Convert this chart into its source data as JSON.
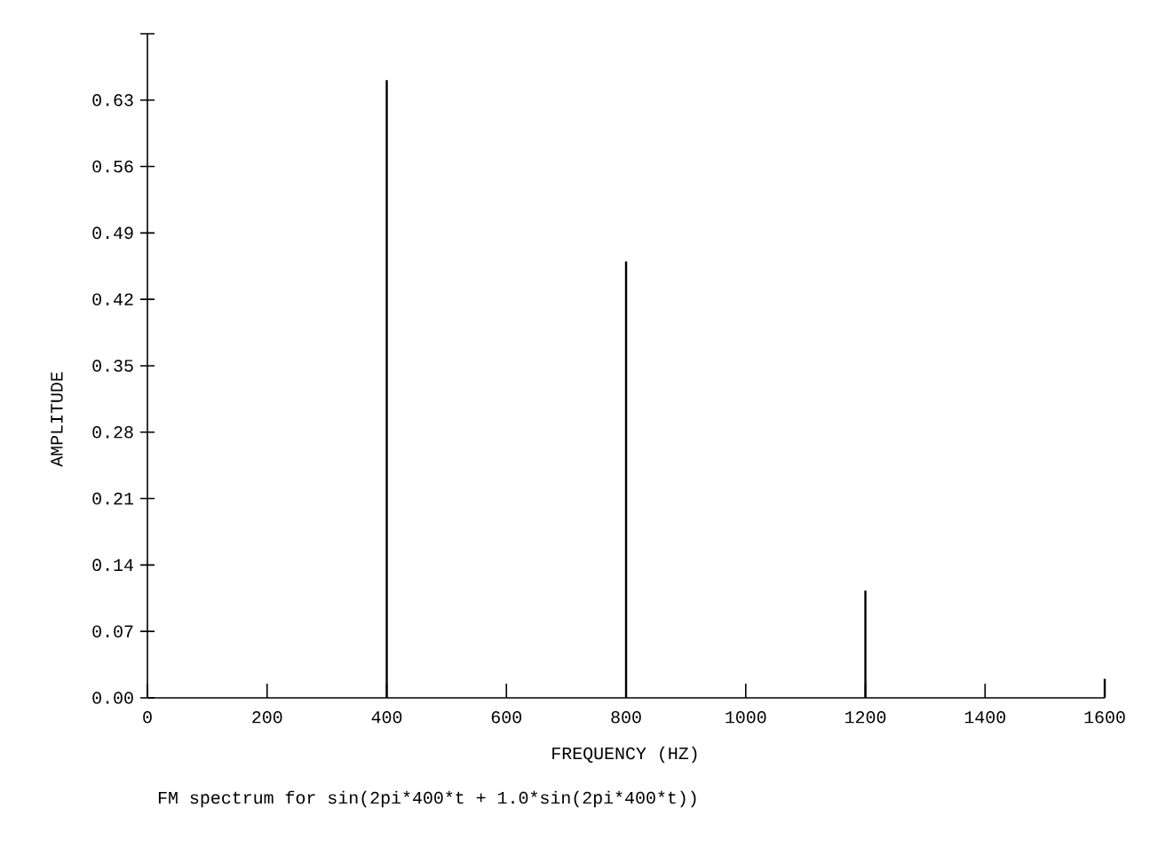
{
  "chart_data": {
    "type": "bar",
    "title": "FM spectrum for sin(2pi*400*t + 1.0*sin(2pi*400*t))",
    "xlabel": "FREQUENCY (HZ)",
    "ylabel": "AMPLITUDE",
    "x": [
      400,
      800,
      1200,
      1600
    ],
    "values": [
      0.651,
      0.46,
      0.113,
      0.02
    ],
    "color": "#000000",
    "xlim": [
      0,
      1600
    ],
    "xticks": [
      0,
      200,
      400,
      600,
      800,
      1000,
      1200,
      1400,
      1600
    ],
    "ylim": [
      0,
      0.7
    ],
    "yticks": [
      {
        "value": 0,
        "label": "0.00"
      },
      {
        "value": 0.07,
        "label": "0.07"
      },
      {
        "value": 0.14,
        "label": "0.14"
      },
      {
        "value": 0.21,
        "label": "0.21"
      },
      {
        "value": 0.28,
        "label": "0.28"
      },
      {
        "value": 0.35,
        "label": "0.35"
      },
      {
        "value": 0.42,
        "label": "0.42"
      },
      {
        "value": 0.49,
        "label": "0.49"
      },
      {
        "value": 0.56,
        "label": "0.56"
      },
      {
        "value": 0.63,
        "label": "0.63"
      },
      {
        "value": 0.7,
        "label": null
      }
    ]
  }
}
